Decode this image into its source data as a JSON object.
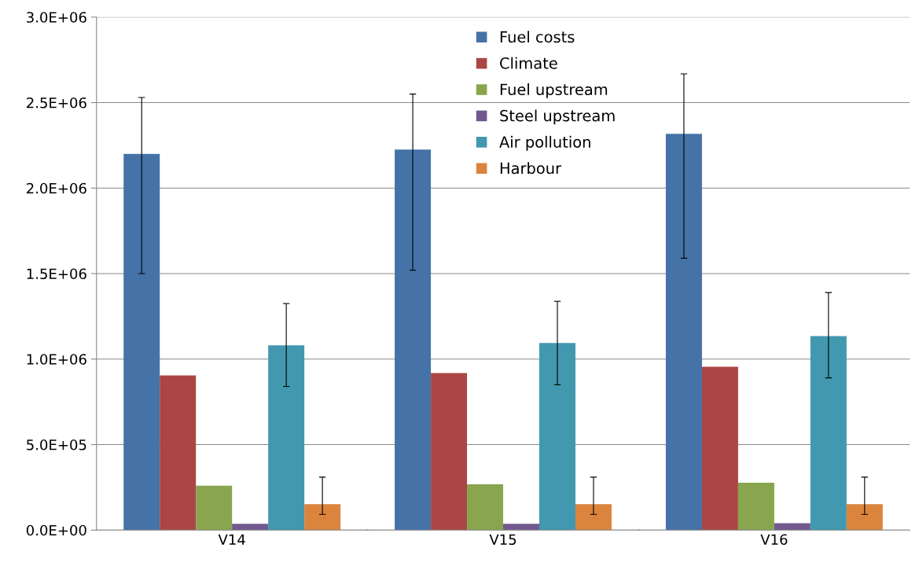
{
  "chart_data": {
    "type": "bar",
    "categories": [
      "V14",
      "V15",
      "V16"
    ],
    "ylim": [
      0,
      3000000
    ],
    "yticks": [
      {
        "value": 0,
        "label": "0.0E+00"
      },
      {
        "value": 500000,
        "label": "5.0E+05"
      },
      {
        "value": 1000000,
        "label": "1.0E+06"
      },
      {
        "value": 1500000,
        "label": "1.5E+06"
      },
      {
        "value": 2000000,
        "label": "2.0E+06"
      },
      {
        "value": 2500000,
        "label": "2.5E+06"
      },
      {
        "value": 3000000,
        "label": "3.0E+06"
      }
    ],
    "grid": "y",
    "legend": "top",
    "series": [
      {
        "name": "Fuel costs",
        "color": "#4572a7",
        "values": [
          2200000,
          2225000,
          2317000
        ],
        "errors": [
          [
            1500000,
            2530000
          ],
          [
            1520000,
            2550000
          ],
          [
            1590000,
            2668000
          ]
        ]
      },
      {
        "name": "Climate",
        "color": "#aa4643",
        "values": [
          905000,
          918000,
          955000
        ]
      },
      {
        "name": "Fuel upstream",
        "color": "#89a54e",
        "values": [
          260000,
          268000,
          277000
        ]
      },
      {
        "name": "Steel upstream",
        "color": "#71588f",
        "values": [
          37000,
          37000,
          40000
        ]
      },
      {
        "name": "Air pollution",
        "color": "#4198af",
        "values": [
          1080000,
          1094000,
          1135000
        ],
        "errors": [
          [
            840000,
            1325000
          ],
          [
            850000,
            1338000
          ],
          [
            890000,
            1389000
          ]
        ]
      },
      {
        "name": "Harbour",
        "color": "#db843d",
        "values": [
          152000,
          152000,
          152000
        ],
        "errors": [
          [
            92000,
            310000
          ],
          [
            92000,
            310000
          ],
          [
            92000,
            310000
          ]
        ]
      }
    ]
  }
}
